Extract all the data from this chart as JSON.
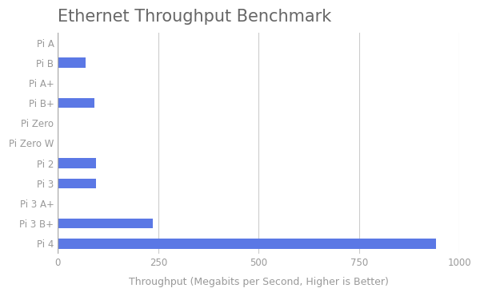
{
  "title": "Ethernet Throughput Benchmark",
  "xlabel": "Throughput (Megabits per Second, Higher is Better)",
  "categories": [
    "Pi A",
    "Pi B",
    "Pi A+",
    "Pi B+",
    "Pi Zero",
    "Pi Zero W",
    "Pi 2",
    "Pi 3",
    "Pi 3 A+",
    "Pi 3 B+",
    "Pi 4"
  ],
  "values": [
    0,
    70,
    0,
    90,
    0,
    0,
    95,
    95,
    0,
    237,
    943
  ],
  "bar_color": "#5b78e5",
  "background_color": "#ffffff",
  "xlim": [
    0,
    1000
  ],
  "xticks": [
    0,
    250,
    500,
    750,
    1000
  ],
  "grid_color": "#cccccc",
  "title_color": "#666666",
  "label_color": "#999999",
  "title_fontsize": 15,
  "label_fontsize": 9,
  "tick_fontsize": 8.5
}
